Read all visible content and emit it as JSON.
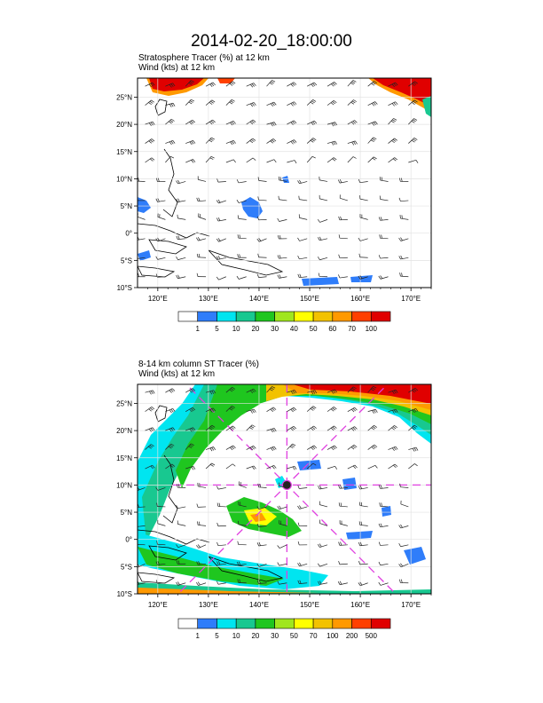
{
  "page_title": "2014-02-20_18:00:00",
  "chart_data": [
    {
      "type": "heatmap",
      "panel": "top",
      "subtitle_lines": [
        "Stratosphere Tracer   (%)     at   12 km",
        "Wind    (kts)     at   12 km"
      ],
      "lon_ticks": [
        "120°E",
        "130°E",
        "140°E",
        "150°E",
        "160°E",
        "170°E"
      ],
      "lat_ticks": [
        "25°N",
        "20°N",
        "15°N",
        "10°N",
        "5°N",
        "0°",
        "5°S",
        "10°S"
      ],
      "xlim": [
        116,
        174
      ],
      "ylim": [
        -10,
        28.5
      ],
      "grid": true,
      "colorbar": {
        "labels": [
          "1",
          "5",
          "10",
          "20",
          "30",
          "40",
          "50",
          "60",
          "70",
          "100"
        ],
        "colors": [
          "#ffffff",
          "#2f7dfa",
          "#00e5f0",
          "#18c890",
          "#1fc61f",
          "#a0e61e",
          "#ffff00",
          "#f2c200",
          "#ff9900",
          "#ff4000",
          "#e00000"
        ]
      },
      "overlays": [
        "wind barbs",
        "coastlines"
      ]
    },
    {
      "type": "heatmap",
      "panel": "bottom",
      "subtitle_lines": [
        "8-14 km column ST Tracer    (%)",
        "Wind    (kts)     at   12 km"
      ],
      "lon_ticks": [
        "120°E",
        "130°E",
        "140°E",
        "150°E",
        "160°E",
        "170°E"
      ],
      "lat_ticks": [
        "25°N",
        "20°N",
        "15°N",
        "10°N",
        "5°N",
        "0°",
        "5°S",
        "10°S"
      ],
      "xlim": [
        116,
        174
      ],
      "ylim": [
        -10,
        28.5
      ],
      "grid": true,
      "colorbar": {
        "labels": [
          "1",
          "5",
          "10",
          "20",
          "30",
          "50",
          "70",
          "100",
          "200",
          "500"
        ],
        "colors": [
          "#ffffff",
          "#2f7dfa",
          "#00e5f0",
          "#18c890",
          "#1fc61f",
          "#a0e61e",
          "#ffff00",
          "#f2c200",
          "#ff9900",
          "#ff4000",
          "#e00000"
        ]
      },
      "overlays": [
        "wind barbs",
        "coastlines",
        "storm track crosshair"
      ],
      "storm_center": {
        "lon": 145.5,
        "lat": 10
      }
    }
  ]
}
